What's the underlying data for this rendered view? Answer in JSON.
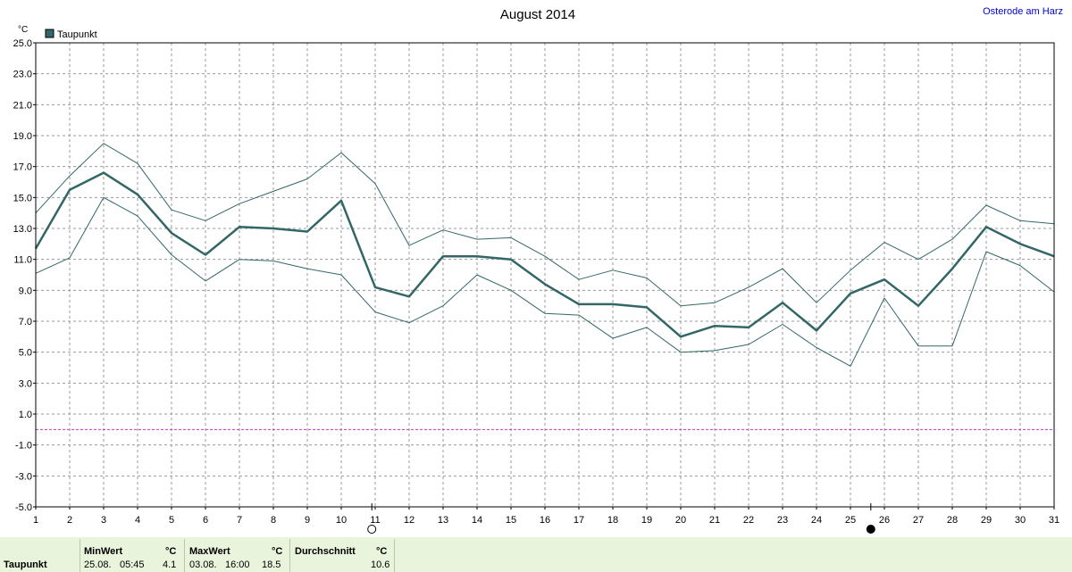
{
  "chart_data": {
    "type": "line",
    "title": "August 2014",
    "location": "Osterode am Harz",
    "ylabel": "°C",
    "ylim": [
      -5,
      25
    ],
    "yticks": [
      25,
      23,
      21,
      19,
      17,
      15,
      13,
      11,
      9,
      7,
      5,
      3,
      1,
      -1,
      -3,
      -5
    ],
    "ytick_labels": [
      "25.0",
      "23.0",
      "21.0",
      "19.0",
      "17.0",
      "15.0",
      "13.0",
      "11.0",
      "9.0",
      "7.0",
      "5.0",
      "3.0",
      "1.0",
      "-1.0",
      "-3.0",
      "-5.0"
    ],
    "x": [
      1,
      2,
      3,
      4,
      5,
      6,
      7,
      8,
      9,
      10,
      11,
      12,
      13,
      14,
      15,
      16,
      17,
      18,
      19,
      20,
      21,
      22,
      23,
      24,
      25,
      26,
      27,
      28,
      29,
      30,
      31
    ],
    "xlim": [
      1,
      31
    ],
    "grid": true,
    "legend": {
      "position": "top-left",
      "label": "Taupunkt",
      "color": "#336666"
    },
    "reference_line": {
      "value": 0,
      "color": "#cc33cc"
    },
    "moon_phases": [
      {
        "day": 10.9,
        "phase": "full"
      },
      {
        "day": 25.6,
        "phase": "new"
      }
    ],
    "series": [
      {
        "name": "Taupunkt",
        "role": "mean",
        "values": [
          11.7,
          15.5,
          16.6,
          15.2,
          12.7,
          11.3,
          13.1,
          13.0,
          12.8,
          14.8,
          9.2,
          8.6,
          11.2,
          11.2,
          11.0,
          9.4,
          8.1,
          8.1,
          7.9,
          6.0,
          6.7,
          6.6,
          8.2,
          6.4,
          8.8,
          9.7,
          8.0,
          10.4,
          13.1,
          12.0,
          11.2
        ]
      },
      {
        "role": "max",
        "values": [
          14.0,
          16.4,
          18.5,
          17.2,
          14.2,
          13.5,
          14.6,
          15.4,
          16.2,
          17.9,
          15.9,
          11.9,
          12.9,
          12.3,
          12.4,
          11.2,
          9.7,
          10.3,
          9.8,
          8.0,
          8.2,
          9.2,
          10.4,
          8.2,
          10.3,
          12.1,
          11.0,
          12.3,
          14.5,
          13.5,
          13.3
        ]
      },
      {
        "role": "min",
        "values": [
          10.1,
          11.1,
          15.0,
          13.8,
          11.3,
          9.6,
          11.0,
          10.9,
          10.4,
          10.0,
          7.6,
          6.9,
          8.0,
          10.0,
          9.0,
          7.5,
          7.4,
          5.9,
          6.6,
          5.0,
          5.1,
          5.5,
          6.8,
          5.3,
          4.1,
          8.5,
          5.4,
          5.4,
          11.5,
          10.6,
          8.9
        ]
      }
    ]
  },
  "footer": {
    "row_label": "Taupunkt",
    "min_header": "MinWert",
    "min_unit": "°C",
    "min_date": "25.08.",
    "min_time": "05:45",
    "min_value": "4.1",
    "max_header": "MaxWert",
    "max_unit": "°C",
    "max_date": "03.08.",
    "max_time": "16:00",
    "max_value": "18.5",
    "avg_header": "Durchschnitt",
    "avg_unit": "°C",
    "avg_value": "10.6"
  }
}
